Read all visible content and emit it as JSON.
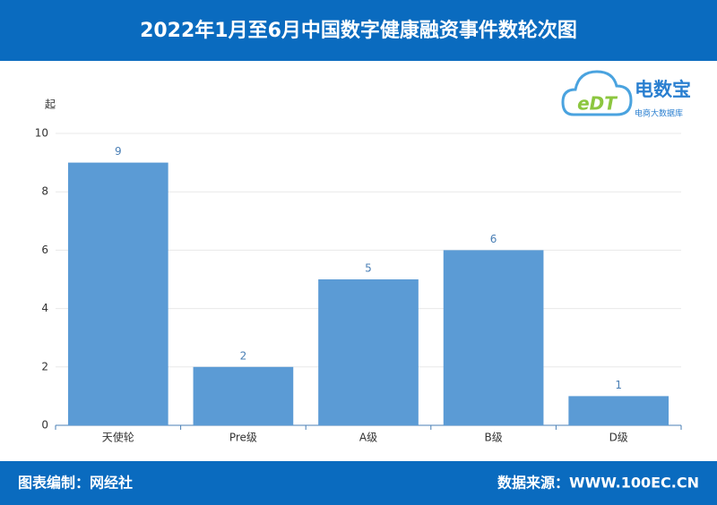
{
  "chart_data": {
    "type": "bar",
    "title": "2022年1月至6月中国数字健康融资事件数轮次图",
    "y_label": "起",
    "categories": [
      "天使轮",
      "Pre级",
      "A级",
      "B级",
      "D级"
    ],
    "values": [
      9,
      2,
      5,
      6,
      1
    ],
    "color": "#5b9bd5",
    "ylim": [
      0,
      10
    ],
    "yticks": [
      0,
      2,
      4,
      6,
      8,
      10
    ],
    "grid": true
  },
  "logo": {
    "mark": "eDT",
    "name": "电数宝",
    "subtitle": "电商大数据库"
  },
  "footer": {
    "left": "图表编制：网经社",
    "right": "数据来源：WWW.100EC.CN"
  }
}
